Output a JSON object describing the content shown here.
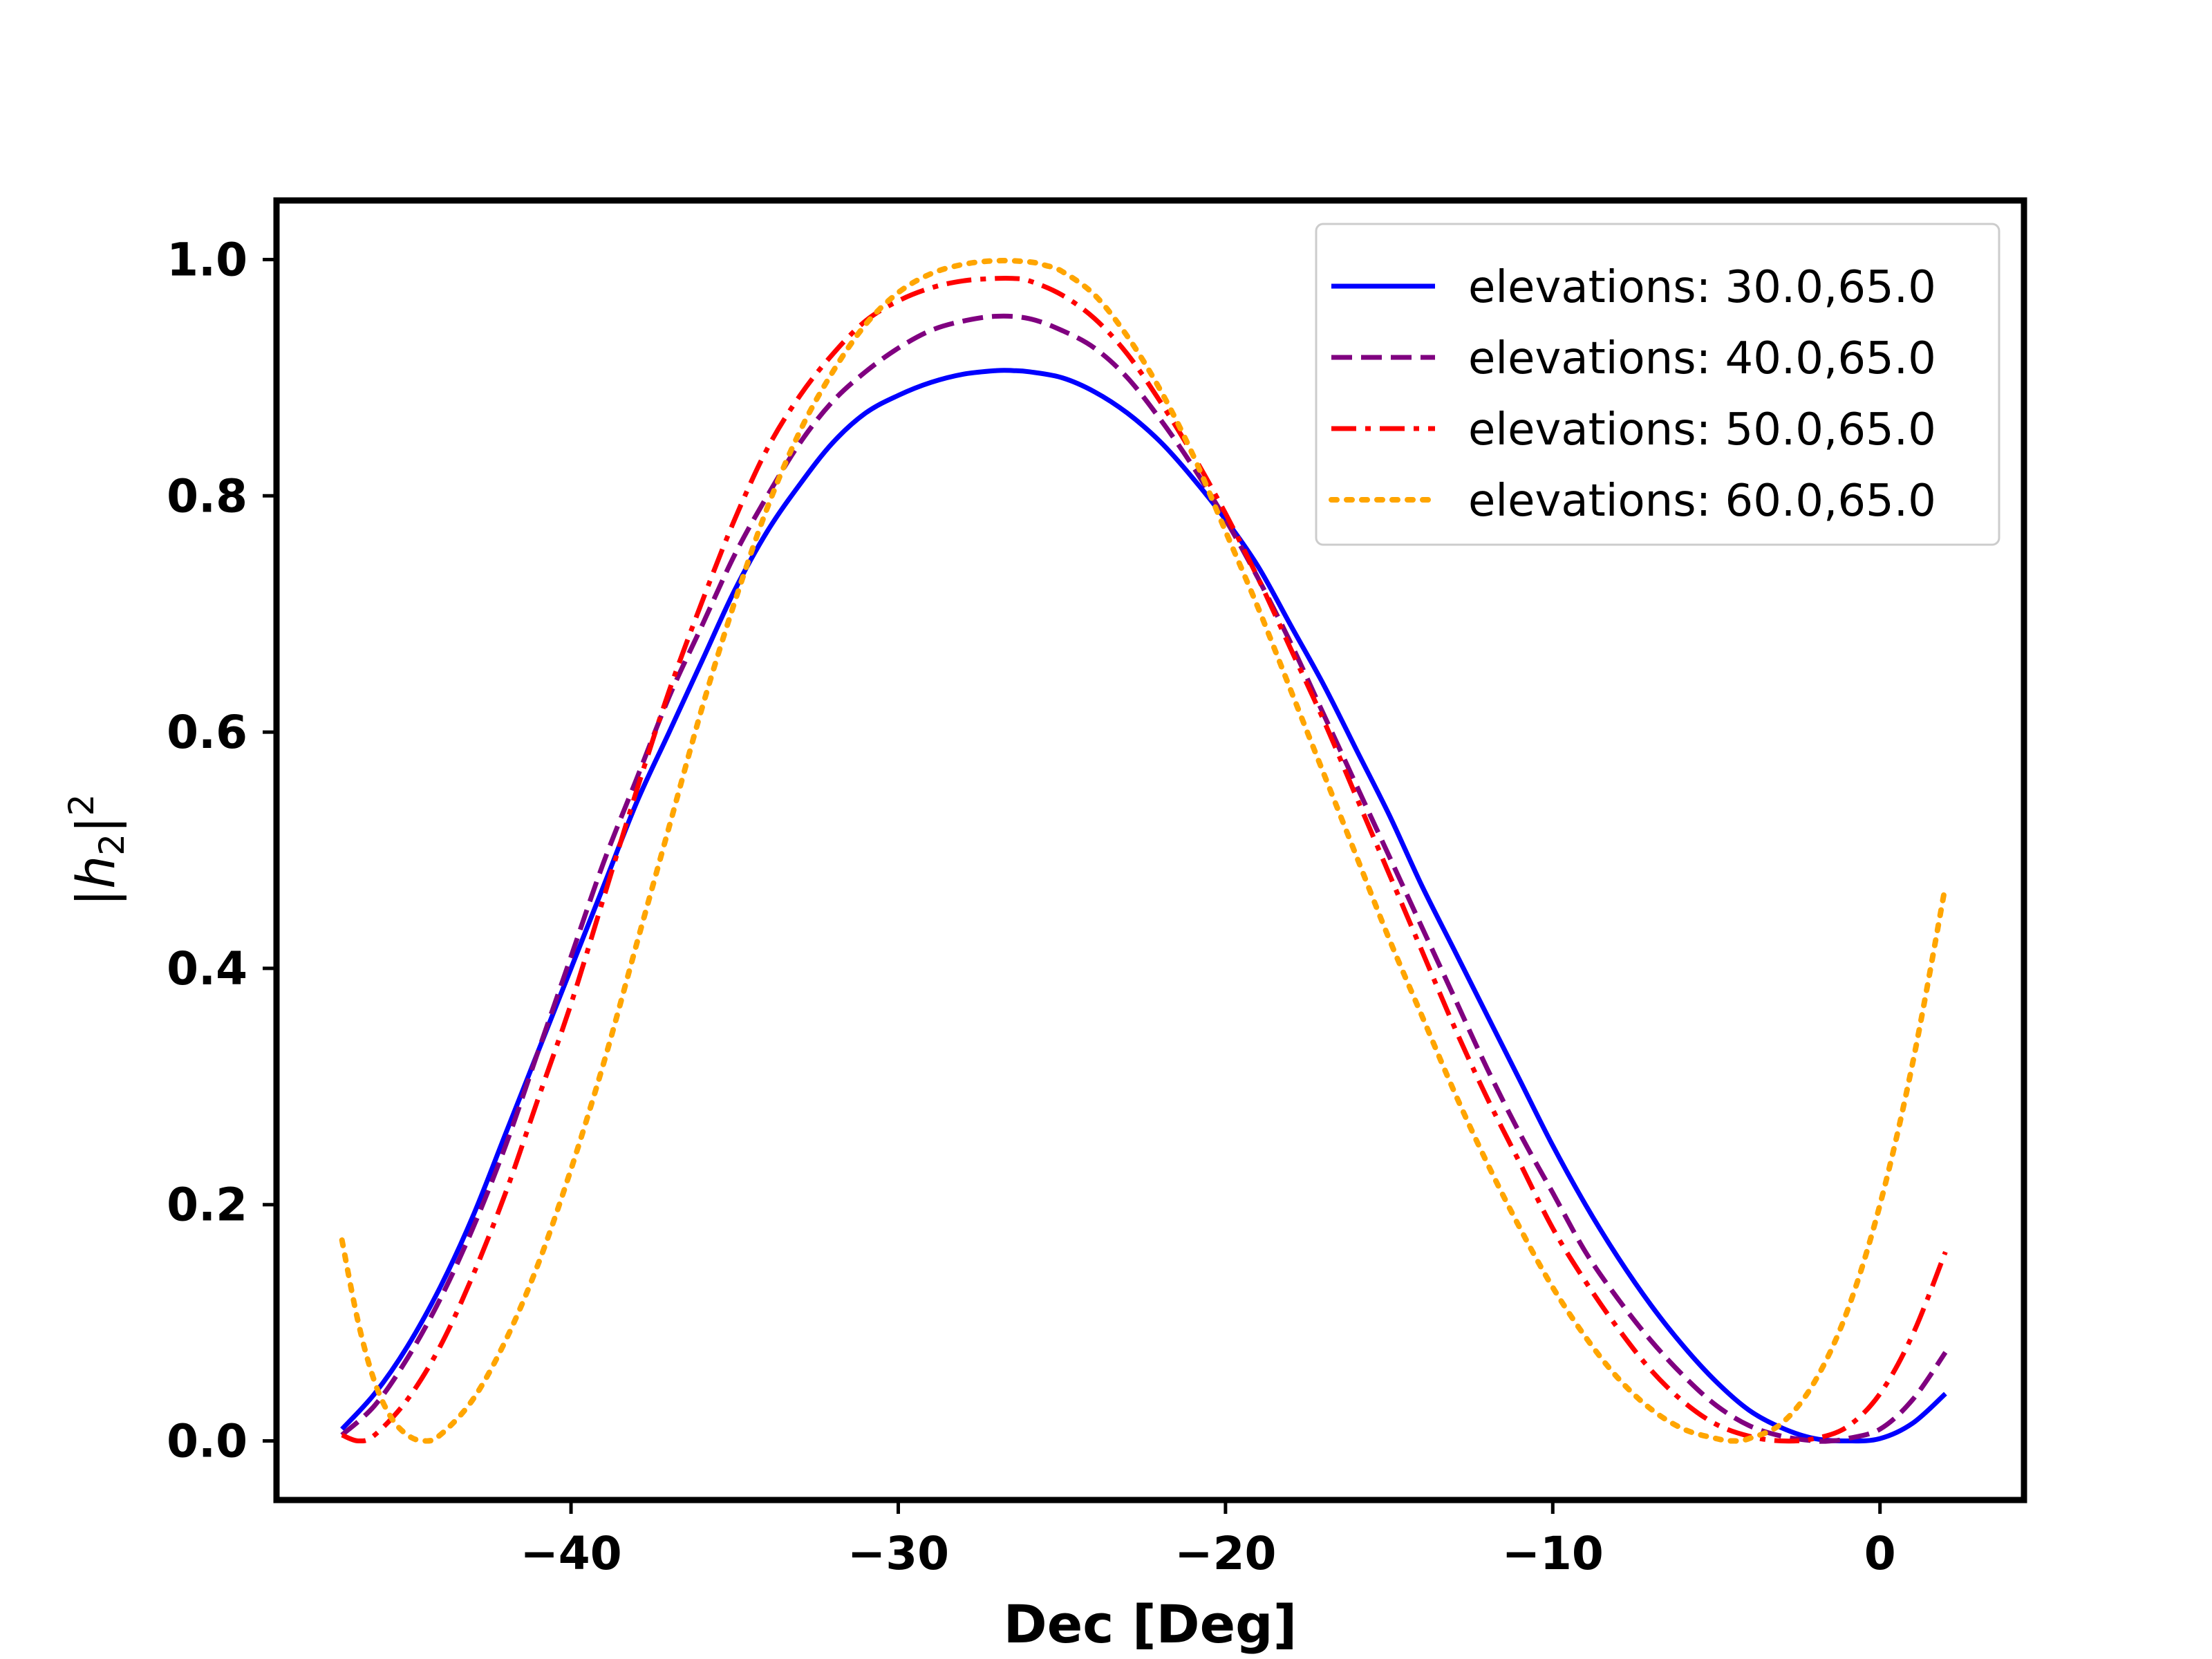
{
  "chart_data": {
    "type": "line",
    "title": "",
    "xlabel": "Dec [Deg]",
    "ylabel": "|h2|^2",
    "ylabel_parts": {
      "bar_open": "|",
      "var": "h",
      "sub": "2",
      "bar_close": "|",
      "sup": "2"
    },
    "xlim": [
      -49,
      4.4
    ],
    "ylim": [
      -0.05,
      1.05
    ],
    "xticks": [
      -40,
      -30,
      -20,
      -10,
      0
    ],
    "xtick_labels": [
      "−40",
      "−30",
      "−20",
      "−10",
      "0"
    ],
    "yticks": [
      0.0,
      0.2,
      0.4,
      0.6,
      0.8,
      1.0
    ],
    "ytick_labels": [
      "0.0",
      "0.2",
      "0.4",
      "0.6",
      "0.8",
      "1.0"
    ],
    "grid": false,
    "legend_position": "top-right",
    "series": [
      {
        "name": "elevations: 30.0,65.0",
        "color": "#0000ff",
        "style": "solid",
        "x": [
          -47,
          -46,
          -45,
          -44,
          -43,
          -42,
          -41,
          -40,
          -39,
          -38,
          -37,
          -36,
          -35,
          -34,
          -33,
          -32,
          -31,
          -30,
          -29,
          -28,
          -27,
          -26.5,
          -26,
          -25,
          -24,
          -23,
          -22,
          -21,
          -20,
          -19,
          -18,
          -17,
          -16,
          -15,
          -14,
          -13,
          -12,
          -11,
          -10,
          -9,
          -8,
          -7,
          -6,
          -5,
          -4,
          -3,
          -2,
          -1,
          0,
          1,
          2
        ],
        "y": [
          0.01,
          0.04,
          0.08,
          0.13,
          0.19,
          0.26,
          0.33,
          0.4,
          0.47,
          0.54,
          0.6,
          0.66,
          0.72,
          0.77,
          0.81,
          0.845,
          0.87,
          0.885,
          0.896,
          0.903,
          0.906,
          0.906,
          0.905,
          0.9,
          0.888,
          0.87,
          0.846,
          0.815,
          0.78,
          0.74,
          0.69,
          0.64,
          0.585,
          0.53,
          0.47,
          0.415,
          0.36,
          0.305,
          0.25,
          0.2,
          0.155,
          0.115,
          0.08,
          0.05,
          0.026,
          0.011,
          0.002,
          0.0,
          0.002,
          0.015,
          0.04
        ]
      },
      {
        "name": "elevations: 40.0,65.0",
        "color": "#800080",
        "style": "dashed",
        "x": [
          -47,
          -46,
          -45,
          -44,
          -43,
          -42,
          -41,
          -40,
          -39,
          -38,
          -37,
          -36,
          -35,
          -34,
          -33,
          -32,
          -31,
          -30,
          -29,
          -28,
          -27,
          -26,
          -25,
          -24,
          -23,
          -22,
          -21,
          -20,
          -19,
          -18,
          -17,
          -16,
          -15,
          -14,
          -13,
          -12,
          -11,
          -10,
          -9,
          -8,
          -7,
          -6,
          -5,
          -4,
          -3,
          -2,
          -1.5,
          -1,
          0,
          1,
          2
        ],
        "y": [
          0.005,
          0.03,
          0.07,
          0.12,
          0.18,
          0.25,
          0.33,
          0.41,
          0.49,
          0.56,
          0.63,
          0.69,
          0.75,
          0.8,
          0.845,
          0.88,
          0.905,
          0.925,
          0.94,
          0.948,
          0.952,
          0.95,
          0.94,
          0.925,
          0.9,
          0.865,
          0.825,
          0.78,
          0.73,
          0.675,
          0.615,
          0.555,
          0.495,
          0.435,
          0.375,
          0.315,
          0.26,
          0.21,
          0.16,
          0.12,
          0.085,
          0.055,
          0.03,
          0.013,
          0.004,
          0.0,
          0.0,
          0.002,
          0.01,
          0.035,
          0.075
        ]
      },
      {
        "name": "elevations: 50.0,65.0",
        "color": "#ff0000",
        "style": "dashdot",
        "x": [
          -47,
          -46.5,
          -46,
          -45,
          -44,
          -43,
          -42,
          -41,
          -40,
          -39,
          -38,
          -37,
          -36,
          -35,
          -34,
          -33,
          -32,
          -31,
          -30,
          -29,
          -28,
          -27,
          -26.5,
          -26,
          -25,
          -24,
          -23,
          -22,
          -21,
          -20,
          -19,
          -18,
          -17,
          -16,
          -15,
          -14,
          -13,
          -12,
          -11,
          -10,
          -9,
          -8,
          -7,
          -6,
          -5,
          -4,
          -3,
          -2,
          -1,
          0,
          1,
          2
        ],
        "y": [
          0.005,
          0.0,
          0.005,
          0.035,
          0.08,
          0.14,
          0.21,
          0.29,
          0.37,
          0.46,
          0.55,
          0.635,
          0.71,
          0.78,
          0.84,
          0.885,
          0.92,
          0.948,
          0.965,
          0.976,
          0.982,
          0.984,
          0.984,
          0.982,
          0.97,
          0.95,
          0.92,
          0.88,
          0.835,
          0.785,
          0.73,
          0.67,
          0.61,
          0.545,
          0.48,
          0.415,
          0.35,
          0.29,
          0.235,
          0.18,
          0.135,
          0.095,
          0.06,
          0.033,
          0.014,
          0.004,
          0.0,
          0.002,
          0.012,
          0.04,
          0.09,
          0.16
        ]
      },
      {
        "name": "elevations: 60.0,65.0",
        "color": "#ffa500",
        "style": "dotted",
        "x": [
          -47,
          -46.5,
          -46,
          -45.5,
          -45,
          -44.5,
          -44,
          -43,
          -42,
          -41,
          -40,
          -39,
          -38,
          -37,
          -36,
          -35,
          -34,
          -33,
          -32,
          -31,
          -30,
          -29,
          -28,
          -27,
          -26,
          -25.5,
          -25,
          -24,
          -23,
          -22,
          -21,
          -20,
          -19,
          -18,
          -17,
          -16,
          -15,
          -14,
          -13,
          -12,
          -11,
          -10,
          -9,
          -8,
          -7,
          -6,
          -5,
          -4.5,
          -4,
          -3,
          -2,
          -1,
          0,
          1,
          2
        ],
        "y": [
          0.17,
          0.1,
          0.05,
          0.02,
          0.005,
          0.0,
          0.005,
          0.035,
          0.085,
          0.15,
          0.23,
          0.32,
          0.42,
          0.52,
          0.62,
          0.71,
          0.79,
          0.855,
          0.905,
          0.945,
          0.972,
          0.988,
          0.996,
          0.999,
          0.998,
          0.995,
          0.99,
          0.97,
          0.935,
          0.89,
          0.835,
          0.77,
          0.705,
          0.635,
          0.565,
          0.495,
          0.425,
          0.36,
          0.295,
          0.235,
          0.18,
          0.13,
          0.088,
          0.053,
          0.027,
          0.01,
          0.002,
          0.0,
          0.002,
          0.015,
          0.05,
          0.11,
          0.2,
          0.32,
          0.47
        ]
      }
    ]
  }
}
